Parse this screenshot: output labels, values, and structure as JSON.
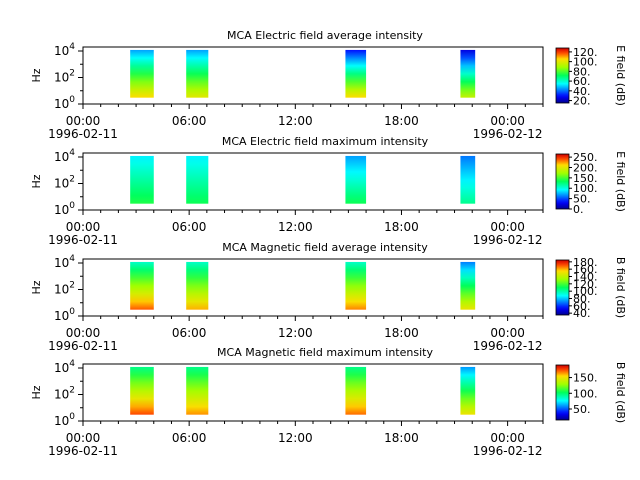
{
  "chart_data": [
    {
      "type": "heatmap",
      "title": "MCA  Electric field average intensity",
      "ylabel": "Hz",
      "y_scale": "log",
      "ylim": [
        1,
        20000
      ],
      "y_ticks": [
        {
          "base": "10",
          "exp": "0"
        },
        {
          "base": "10",
          "exp": "2"
        },
        {
          "base": "10",
          "exp": "4"
        }
      ],
      "xlim": [
        "1996-02-11 00:00",
        "1996-02-12 02:00"
      ],
      "x_ticks": [
        {
          "time": "00:00",
          "date": "1996-02-11"
        },
        {
          "time": "06:00",
          "date": ""
        },
        {
          "time": "12:00",
          "date": ""
        },
        {
          "time": "18:00",
          "date": ""
        },
        {
          "time": "00:00",
          "date": "1996-02-12"
        }
      ],
      "colorbar": {
        "label": "E field (dB)",
        "ticks": [
          "20.",
          "40.",
          "60.",
          "80.",
          "100.",
          "120."
        ],
        "min": 15,
        "max": 128
      },
      "data_blocks": [
        {
          "start": "02:40",
          "end": "04:00",
          "f_min": 3,
          "f_max": 12000,
          "low_value": 105,
          "high_value": 45
        },
        {
          "start": "05:50",
          "end": "07:05",
          "f_min": 3,
          "f_max": 12000,
          "low_value": 100,
          "high_value": 45
        },
        {
          "start": "14:50",
          "end": "16:00",
          "f_min": 3,
          "f_max": 12000,
          "low_value": 105,
          "high_value": 30
        },
        {
          "start": "21:20",
          "end": "22:10",
          "f_min": 3,
          "f_max": 12000,
          "low_value": 95,
          "high_value": 25
        }
      ]
    },
    {
      "type": "heatmap",
      "title": "MCA  Electric field maximum intensity",
      "ylabel": "Hz",
      "y_scale": "log",
      "ylim": [
        1,
        20000
      ],
      "y_ticks": [
        {
          "base": "10",
          "exp": "0"
        },
        {
          "base": "10",
          "exp": "2"
        },
        {
          "base": "10",
          "exp": "4"
        }
      ],
      "xlim": [
        "1996-02-11 00:00",
        "1996-02-12 02:00"
      ],
      "x_ticks": [
        {
          "time": "00:00",
          "date": "1996-02-11"
        },
        {
          "time": "06:00",
          "date": ""
        },
        {
          "time": "12:00",
          "date": ""
        },
        {
          "time": "18:00",
          "date": ""
        },
        {
          "time": "00:00",
          "date": "1996-02-12"
        }
      ],
      "colorbar": {
        "label": "E field (dB)",
        "ticks": [
          "0.",
          "50.",
          "100.",
          "150.",
          "200.",
          "250."
        ],
        "min": 0,
        "max": 265
      },
      "data_blocks": [
        {
          "start": "02:40",
          "end": "04:00",
          "f_min": 3,
          "f_max": 12000,
          "low_value": 140,
          "high_value": 90
        },
        {
          "start": "05:50",
          "end": "07:05",
          "f_min": 3,
          "f_max": 12000,
          "low_value": 135,
          "high_value": 90
        },
        {
          "start": "14:50",
          "end": "16:00",
          "f_min": 3,
          "f_max": 12000,
          "low_value": 135,
          "high_value": 70
        },
        {
          "start": "21:20",
          "end": "22:10",
          "f_min": 3,
          "f_max": 12000,
          "low_value": 120,
          "high_value": 60
        }
      ]
    },
    {
      "type": "heatmap",
      "title": "MCA  Magnetic field average intensity",
      "ylabel": "Hz",
      "y_scale": "log",
      "ylim": [
        1,
        20000
      ],
      "y_ticks": [
        {
          "base": "10",
          "exp": "0"
        },
        {
          "base": "10",
          "exp": "2"
        },
        {
          "base": "10",
          "exp": "4"
        }
      ],
      "xlim": [
        "1996-02-11 00:00",
        "1996-02-12 02:00"
      ],
      "x_ticks": [
        {
          "time": "00:00",
          "date": "1996-02-11"
        },
        {
          "time": "06:00",
          "date": ""
        },
        {
          "time": "12:00",
          "date": ""
        },
        {
          "time": "18:00",
          "date": ""
        },
        {
          "time": "00:00",
          "date": "1996-02-12"
        }
      ],
      "colorbar": {
        "label": "B field (dB)",
        "ticks": [
          "40.",
          "60.",
          "80.",
          "100.",
          "120.",
          "140.",
          "160.",
          "180."
        ],
        "min": 35,
        "max": 185
      },
      "data_blocks": [
        {
          "start": "02:40",
          "end": "04:00",
          "f_min": 3,
          "f_max": 12000,
          "low_value": 170,
          "high_value": 95
        },
        {
          "start": "05:50",
          "end": "07:05",
          "f_min": 3,
          "f_max": 12000,
          "low_value": 160,
          "high_value": 95
        },
        {
          "start": "14:50",
          "end": "16:00",
          "f_min": 3,
          "f_max": 12000,
          "low_value": 165,
          "high_value": 95
        },
        {
          "start": "21:20",
          "end": "22:10",
          "f_min": 3,
          "f_max": 12000,
          "low_value": 150,
          "high_value": 70
        }
      ]
    },
    {
      "type": "heatmap",
      "title": "MCA  Magnetic field maximum intensity",
      "ylabel": "Hz",
      "y_scale": "log",
      "ylim": [
        1,
        20000
      ],
      "y_ticks": [
        {
          "base": "10",
          "exp": "0"
        },
        {
          "base": "10",
          "exp": "2"
        },
        {
          "base": "10",
          "exp": "4"
        }
      ],
      "xlim": [
        "1996-02-11 00:00",
        "1996-02-12 02:00"
      ],
      "x_ticks": [
        {
          "time": "00:00",
          "date": "1996-02-11"
        },
        {
          "time": "06:00",
          "date": ""
        },
        {
          "time": "12:00",
          "date": ""
        },
        {
          "time": "18:00",
          "date": ""
        },
        {
          "time": "00:00",
          "date": "1996-02-12"
        }
      ],
      "colorbar": {
        "label": "B field (dB)",
        "ticks": [
          "50.",
          "100.",
          "150."
        ],
        "min": 15,
        "max": 190
      },
      "data_blocks": [
        {
          "start": "02:40",
          "end": "04:00",
          "f_min": 3,
          "f_max": 12000,
          "low_value": 175,
          "high_value": 95
        },
        {
          "start": "05:50",
          "end": "07:05",
          "f_min": 3,
          "f_max": 12000,
          "low_value": 165,
          "high_value": 95
        },
        {
          "start": "14:50",
          "end": "16:00",
          "f_min": 3,
          "f_max": 12000,
          "low_value": 170,
          "high_value": 95
        },
        {
          "start": "21:20",
          "end": "22:10",
          "f_min": 3,
          "f_max": 12000,
          "low_value": 150,
          "high_value": 60
        }
      ]
    }
  ]
}
